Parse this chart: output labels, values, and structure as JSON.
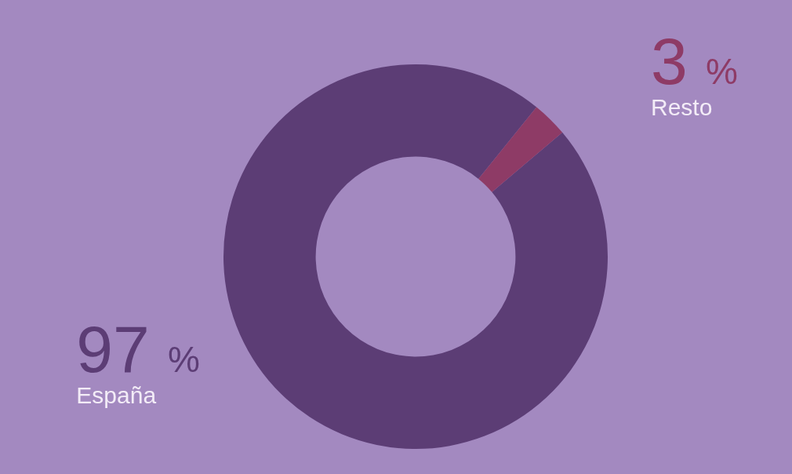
{
  "chart_data": {
    "type": "donut",
    "categories": [
      "España",
      "Resto"
    ],
    "values": [
      97,
      3
    ],
    "colors": [
      "#5c3d75",
      "#8e3b66"
    ],
    "value_labels": [
      "97 %",
      "3 %"
    ],
    "legend": false
  }
}
